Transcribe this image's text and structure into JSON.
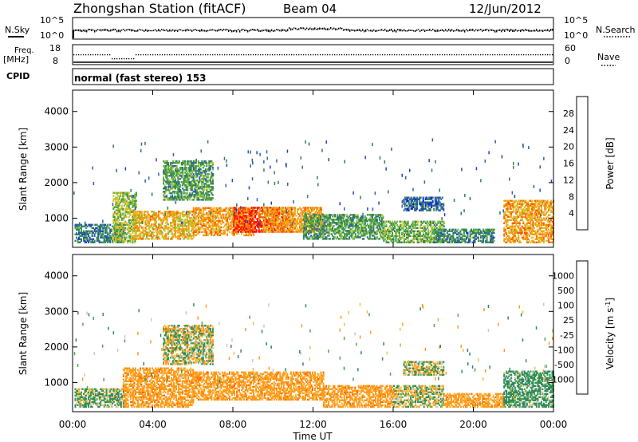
{
  "header": {
    "station": "Zhongshan Station (fitACF)",
    "beam": "Beam 04",
    "date": "12/Jun/2012"
  },
  "status_panels": {
    "nsky": {
      "label": "N.Sky",
      "tick_top": "10^5",
      "tick_bottom": "10^0"
    },
    "nsearch": {
      "label": "N.Search",
      "tick_top": "10^5",
      "tick_bottom": "10^0"
    },
    "freq": {
      "label_line1": "Freq.",
      "label_line2": "[MHz]",
      "tick_top": "18",
      "tick_bottom": "8"
    },
    "nave": {
      "label": "Nave",
      "tick_top": "60",
      "tick_bottom": "0"
    },
    "cpid": {
      "label": "CPID",
      "value": "normal (fast stereo) 153"
    }
  },
  "chart_data": [
    {
      "type": "heatmap",
      "quantity": "Power",
      "ylabel": "Slant Range [km]",
      "xlabel": "",
      "x_ticks": [
        "00:00",
        "04:00",
        "08:00",
        "12:00",
        "16:00",
        "20:00",
        "00:00"
      ],
      "x_range_hours": [
        0,
        24
      ],
      "y_ticks": [
        1000,
        2000,
        3000,
        4000
      ],
      "ylim": [
        180,
        4600
      ],
      "colorbar": {
        "label": "Power [dB]",
        "ticks": [
          "4",
          "8",
          "12",
          "16",
          "20",
          "24",
          "28"
        ],
        "range": [
          0,
          30
        ],
        "colors": [
          "#0000ff",
          "#1e40c8",
          "#2f5fa8",
          "#2e7d5a",
          "#3e9a4a",
          "#76b83a",
          "#c8c832",
          "#f0b020",
          "#ff8c00",
          "#ff5a00",
          "#ff0000"
        ]
      },
      "regions": [
        {
          "t0": 0.1,
          "t1": 2.6,
          "r0": 300,
          "r1": 800,
          "value": 9
        },
        {
          "t0": 2.0,
          "t1": 3.2,
          "r0": 300,
          "r1": 1700,
          "value": 16
        },
        {
          "t0": 3.0,
          "t1": 6.0,
          "r0": 400,
          "r1": 1200,
          "value": 20
        },
        {
          "t0": 4.5,
          "t1": 7.0,
          "r0": 1500,
          "r1": 2600,
          "value": 12
        },
        {
          "t0": 6.0,
          "t1": 9.0,
          "r0": 500,
          "r1": 1300,
          "value": 22
        },
        {
          "t0": 8.0,
          "t1": 11.0,
          "r0": 600,
          "r1": 1300,
          "value": 28
        },
        {
          "t0": 9.5,
          "t1": 12.5,
          "r0": 600,
          "r1": 1300,
          "value": 22
        },
        {
          "t0": 11.5,
          "t1": 15.5,
          "r0": 400,
          "r1": 1100,
          "value": 12
        },
        {
          "t0": 15.5,
          "t1": 18.5,
          "r0": 300,
          "r1": 900,
          "value": 14
        },
        {
          "t0": 16.5,
          "t1": 18.5,
          "r0": 1200,
          "r1": 1600,
          "value": 7
        },
        {
          "t0": 18.0,
          "t1": 21.0,
          "r0": 300,
          "r1": 700,
          "value": 10
        },
        {
          "t0": 21.5,
          "t1": 24.0,
          "r0": 300,
          "r1": 1500,
          "value": 22
        }
      ]
    },
    {
      "type": "heatmap",
      "quantity": "Velocity",
      "ylabel": "Slant Range [km]",
      "xlabel": "Time UT",
      "x_ticks": [
        "00:00",
        "04:00",
        "08:00",
        "12:00",
        "16:00",
        "20:00",
        "00:00"
      ],
      "x_range_hours": [
        0,
        24
      ],
      "y_ticks": [
        1000,
        2000,
        3000,
        4000
      ],
      "ylim": [
        180,
        4600
      ],
      "colorbar": {
        "label": "Velocity [m s^-1]",
        "ticks": [
          "1000",
          "500",
          "100",
          "25",
          "-25",
          "-100",
          "-500",
          "-1000"
        ],
        "colors": [
          "#1e3cc8",
          "#2e6a8a",
          "#2e8a5a",
          "#4aa84a",
          "#c8c8c8",
          "#f0c040",
          "#ff9a1a",
          "#ff6a00",
          "#ff0000"
        ]
      },
      "regions": [
        {
          "t0": 0.1,
          "t1": 2.6,
          "r0": 300,
          "r1": 800,
          "value": 100
        },
        {
          "t0": 2.5,
          "t1": 6.0,
          "r0": 300,
          "r1": 1400,
          "value": -300
        },
        {
          "t0": 4.5,
          "t1": 7.0,
          "r0": 1500,
          "r1": 2600,
          "value": 0
        },
        {
          "t0": 6.0,
          "t1": 12.5,
          "r0": 500,
          "r1": 1300,
          "value": -300
        },
        {
          "t0": 12.5,
          "t1": 16.0,
          "r0": 300,
          "r1": 900,
          "value": -300
        },
        {
          "t0": 16.0,
          "t1": 18.5,
          "r0": 300,
          "r1": 900,
          "value": 0
        },
        {
          "t0": 16.5,
          "t1": 18.5,
          "r0": 1200,
          "r1": 1600,
          "value": 0
        },
        {
          "t0": 18.5,
          "t1": 21.5,
          "r0": 300,
          "r1": 700,
          "value": -300
        },
        {
          "t0": 21.5,
          "t1": 24.0,
          "r0": 300,
          "r1": 1300,
          "value": 200
        }
      ]
    }
  ],
  "time_axis_label": "Time UT"
}
